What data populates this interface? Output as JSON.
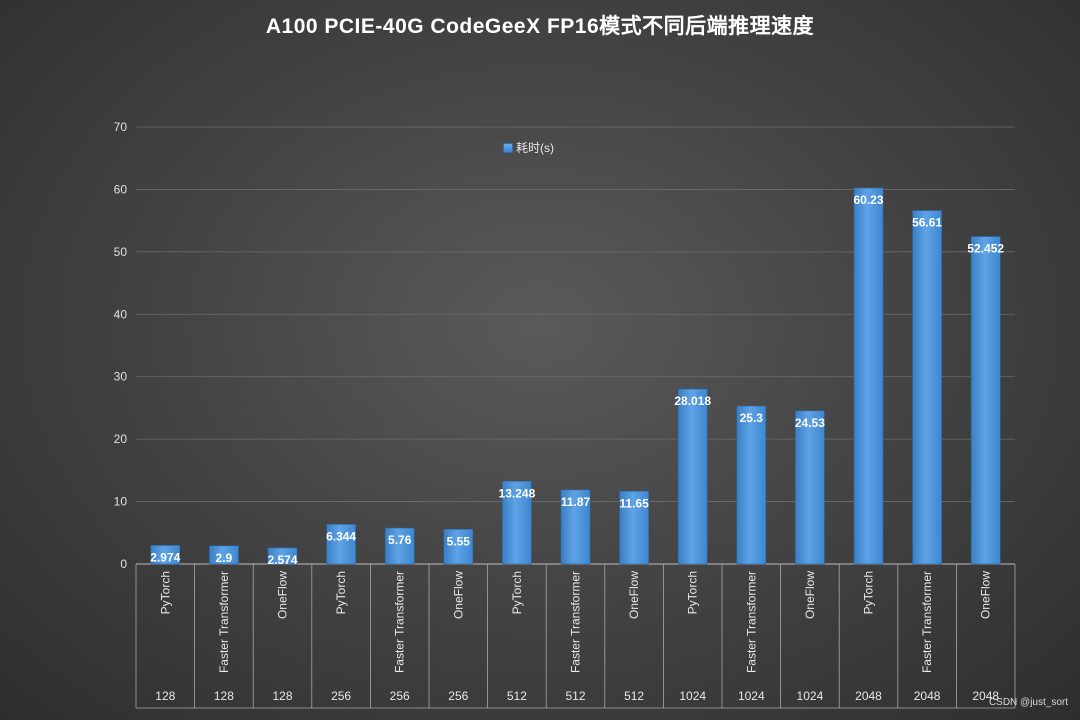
{
  "chart_data": {
    "type": "bar",
    "title": "A100 PCIE-40G CodeGeeX FP16模式不同后端推理速度",
    "ylim": [
      0,
      70
    ],
    "yticks": [
      0,
      10,
      20,
      30,
      40,
      50,
      60,
      70
    ],
    "grid": true,
    "legend_position": "top-center",
    "series": [
      {
        "name": "耗时(s)",
        "color": "#4a90d9",
        "values": [
          2.974,
          2.9,
          2.574,
          6.344,
          5.76,
          5.55,
          13.248,
          11.87,
          11.65,
          28.018,
          25.3,
          24.53,
          60.23,
          56.61,
          52.452
        ],
        "labels": [
          "2.974",
          "2.9",
          "2.574",
          "6.344",
          "5.76",
          "5.55",
          "13.248",
          "11.87",
          "11.65",
          "28.018",
          "25.3",
          "24.53",
          "60.23",
          "56.61",
          "52.452"
        ]
      }
    ],
    "categories": [
      "PyTorch",
      "Faster Transformer",
      "OneFlow",
      "PyTorch",
      "Faster Transformer",
      "OneFlow",
      "PyTorch",
      "Faster Transformer",
      "OneFlow",
      "PyTorch",
      "Faster Transformer",
      "OneFlow",
      "PyTorch",
      "Faster Transformer",
      "OneFlow"
    ],
    "groups": [
      "128",
      "128",
      "128",
      "256",
      "256",
      "256",
      "512",
      "512",
      "512",
      "1024",
      "1024",
      "1024",
      "2048",
      "2048",
      "2048"
    ]
  },
  "watermark": "CSDN @just_sort"
}
